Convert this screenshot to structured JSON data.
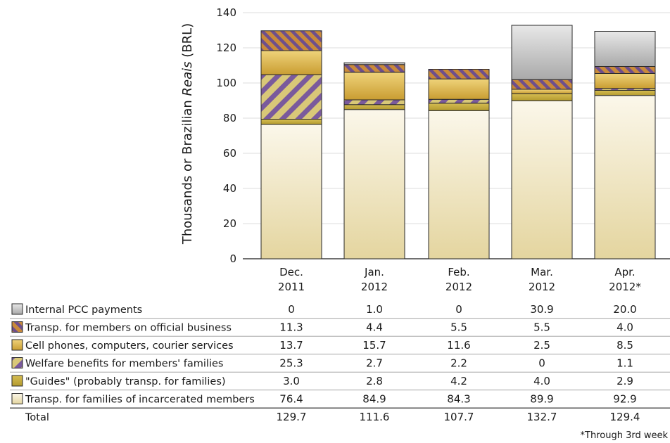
{
  "chart_data": {
    "type": "bar",
    "stacked": true,
    "ylabel_pre": "Thousands or Brazilian ",
    "ylabel_em": "Reais",
    "ylabel_post": " (BRL)",
    "ylim": [
      0,
      140
    ],
    "yticks": [
      0,
      20,
      40,
      60,
      80,
      100,
      120,
      140
    ],
    "grid": true,
    "categories": [
      {
        "line1": "Dec.",
        "line2": "2011"
      },
      {
        "line1": "Jan.",
        "line2": "2012"
      },
      {
        "line1": "Feb.",
        "line2": "2012"
      },
      {
        "line1": "Mar.",
        "line2": "2012"
      },
      {
        "line1": "Apr.",
        "line2": "2012*"
      }
    ],
    "series": [
      {
        "name": "Internal PCC payments",
        "values": [
          "0",
          "1.0",
          "0",
          "30.9",
          "20.0"
        ],
        "color": "#c4c4c4",
        "pattern": "gray"
      },
      {
        "name": "Transp. for members on official business",
        "values": [
          "11.3",
          "4.4",
          "5.5",
          "5.5",
          "4.0"
        ],
        "color": "#b07a36",
        "pattern": "stripe-dense"
      },
      {
        "name": "Cell phones, computers, courier services",
        "values": [
          "13.7",
          "15.7",
          "11.6",
          "2.5",
          "8.5"
        ],
        "color": "#d9b548",
        "pattern": "gold"
      },
      {
        "name": "Welfare benefits for members' families",
        "values": [
          "25.3",
          "2.7",
          "2.2",
          "0",
          "1.1"
        ],
        "color": "#d4bf6e",
        "pattern": "stripe-wide"
      },
      {
        "name": "\"Guides\" (probably transp. for families)",
        "values": [
          "3.0",
          "2.8",
          "4.2",
          "4.0",
          "2.9"
        ],
        "color": "#c3a83a",
        "pattern": "olive"
      },
      {
        "name": "Transp. for families of incarcerated members",
        "values": [
          "76.4",
          "84.9",
          "84.3",
          "89.9",
          "92.9"
        ],
        "color": "#eee6c8",
        "pattern": "cream"
      }
    ],
    "total_label": "Total",
    "totals": [
      "129.7",
      "111.6",
      "107.7",
      "132.7",
      "129.4"
    ],
    "footnote": "*Through 3rd week"
  }
}
